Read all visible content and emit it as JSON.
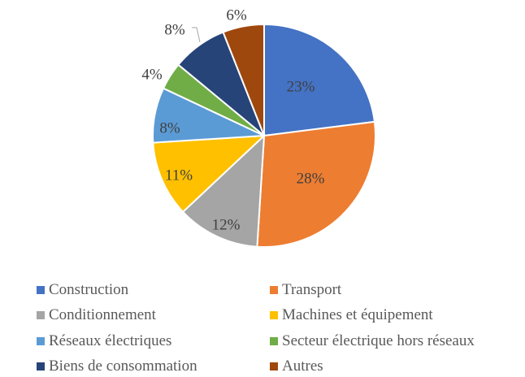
{
  "chart_data": {
    "type": "pie",
    "title": "",
    "categories": [
      "Construction",
      "Transport",
      "Conditionnement",
      "Machines et équipement",
      "Réseaux électriques",
      "Secteur électrique hors réseaux",
      "Biens de consommation",
      "Autres"
    ],
    "values": [
      23,
      28,
      12,
      11,
      8,
      4,
      8,
      6
    ],
    "labels": [
      "23%",
      "28%",
      "12%",
      "11%",
      "8%",
      "4%",
      "8%",
      "6%"
    ],
    "colors": [
      "#4472C4",
      "#ED7D31",
      "#A5A5A5",
      "#FFC000",
      "#5B9BD5",
      "#70AD47",
      "#264478",
      "#9E480E"
    ],
    "start_angle_deg": 0,
    "direction": "clockwise",
    "legend_position": "bottom",
    "unit": "%"
  },
  "legend": {
    "items": [
      {
        "label": "Construction",
        "color": "#4472C4"
      },
      {
        "label": "Transport",
        "color": "#ED7D31"
      },
      {
        "label": "Conditionnement",
        "color": "#A5A5A5"
      },
      {
        "label": "Machines et équipement",
        "color": "#FFC000"
      },
      {
        "label": "Réseaux électriques",
        "color": "#5B9BD5"
      },
      {
        "label": "Secteur électrique hors réseaux",
        "color": "#70AD47"
      },
      {
        "label": "Biens de consommation",
        "color": "#264478"
      },
      {
        "label": "Autres",
        "color": "#9E480E"
      }
    ]
  }
}
